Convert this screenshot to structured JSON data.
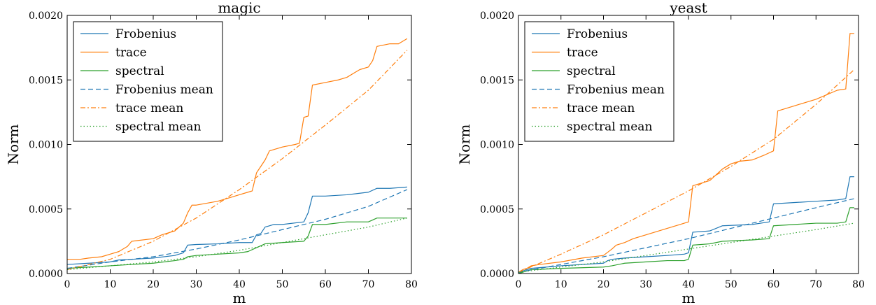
{
  "colors": {
    "frobenius": "#1f77b4",
    "trace": "#ff7f0e",
    "spectral": "#2ca02c"
  },
  "chart_data": [
    {
      "type": "line",
      "title": "magic",
      "xlabel": "m",
      "ylabel": "Norm",
      "xlim": [
        0,
        80
      ],
      "ylim": [
        0,
        0.002
      ],
      "xticks": [
        0,
        10,
        20,
        30,
        40,
        50,
        60,
        70,
        80
      ],
      "xtick_labels": [
        "0",
        "10",
        "20",
        "30",
        "40",
        "50",
        "60",
        "70",
        "80"
      ],
      "yticks": [
        0,
        0.0005,
        0.001,
        0.0015,
        0.002
      ],
      "ytick_labels": [
        "0.0000",
        "0.0005",
        "0.0010",
        "0.0015",
        "0.0020"
      ],
      "grid": false,
      "legend": "top-left",
      "series": [
        {
          "name": "Frobenius",
          "color": "frobenius",
          "style": "solid",
          "x": [
            0,
            5,
            10,
            12,
            15,
            20,
            25,
            27,
            28,
            30,
            35,
            40,
            43,
            44,
            45,
            46,
            48,
            50,
            55,
            56,
            57,
            60,
            65,
            70,
            72,
            75,
            79
          ],
          "y": [
            7e-05,
            8e-05,
            9e-05,
            0.000105,
            0.00011,
            0.00012,
            0.00014,
            0.00016,
            0.00022,
            0.000225,
            0.00023,
            0.00024,
            0.00024,
            0.0003,
            0.00031,
            0.00036,
            0.00038,
            0.00038,
            0.0004,
            0.00047,
            0.0006,
            0.0006,
            0.00061,
            0.00063,
            0.00066,
            0.00066,
            0.00067
          ]
        },
        {
          "name": "trace",
          "color": "trace",
          "style": "solid",
          "x": [
            0,
            3,
            5,
            8,
            10,
            12,
            14,
            15,
            20,
            22,
            25,
            27,
            28,
            29,
            30,
            35,
            38,
            40,
            42,
            43,
            44,
            45,
            46,
            47,
            50,
            53,
            54,
            55,
            56,
            57,
            60,
            63,
            65,
            68,
            70,
            71,
            72,
            75,
            77,
            79
          ],
          "y": [
            0.00011,
            0.00011,
            0.00012,
            0.00013,
            0.00015,
            0.00017,
            0.00021,
            0.00025,
            0.00027,
            0.0003,
            0.00033,
            0.00039,
            0.00047,
            0.00053,
            0.00053,
            0.00056,
            0.00059,
            0.00061,
            0.00063,
            0.00064,
            0.00078,
            0.00083,
            0.00088,
            0.00095,
            0.00098,
            0.001,
            0.00101,
            0.00121,
            0.00122,
            0.00146,
            0.00148,
            0.0015,
            0.00152,
            0.00158,
            0.0016,
            0.00165,
            0.00176,
            0.00178,
            0.00178,
            0.00182
          ]
        },
        {
          "name": "spectral",
          "color": "spectral",
          "style": "solid",
          "x": [
            0,
            5,
            10,
            15,
            20,
            25,
            27,
            28,
            30,
            35,
            40,
            42,
            44,
            46,
            50,
            55,
            56,
            57,
            60,
            65,
            70,
            72,
            75,
            79
          ],
          "y": [
            4e-05,
            5e-05,
            6e-05,
            7e-05,
            8e-05,
            0.0001,
            0.00011,
            0.00013,
            0.00014,
            0.00015,
            0.00016,
            0.00017,
            0.0002,
            0.00023,
            0.00024,
            0.00025,
            0.00029,
            0.00038,
            0.00038,
            0.0004,
            0.0004,
            0.00043,
            0.00043,
            0.00043
          ]
        },
        {
          "name": "Frobenius mean",
          "color": "frobenius",
          "style": "dashed",
          "x": [
            0,
            10,
            20,
            30,
            40,
            50,
            60,
            70,
            79
          ],
          "y": [
            4e-05,
            9e-05,
            0.00013,
            0.00019,
            0.00026,
            0.00034,
            0.00042,
            0.00052,
            0.00065
          ]
        },
        {
          "name": "trace mean",
          "color": "trace",
          "style": "dashdot",
          "x": [
            0,
            10,
            20,
            30,
            40,
            50,
            60,
            70,
            79
          ],
          "y": [
            3e-05,
            0.00011,
            0.00025,
            0.00043,
            0.00065,
            0.00089,
            0.00115,
            0.00142,
            0.00173
          ]
        },
        {
          "name": "spectral mean",
          "color": "spectral",
          "style": "dotted",
          "x": [
            0,
            10,
            20,
            30,
            40,
            50,
            60,
            70,
            79
          ],
          "y": [
            3e-05,
            6e-05,
            9e-05,
            0.00013,
            0.00018,
            0.00024,
            0.0003,
            0.00036,
            0.00043
          ]
        }
      ]
    },
    {
      "type": "line",
      "title": "yeast",
      "xlabel": "m",
      "ylabel": "Norm",
      "xlim": [
        0,
        80
      ],
      "ylim": [
        0,
        0.002
      ],
      "xticks": [
        0,
        10,
        20,
        30,
        40,
        50,
        60,
        70,
        80
      ],
      "xtick_labels": [
        "0",
        "10",
        "20",
        "30",
        "40",
        "50",
        "60",
        "70",
        "80"
      ],
      "yticks": [
        0,
        0.0005,
        0.001,
        0.0015,
        0.002
      ],
      "ytick_labels": [
        "0.0000",
        "0.0005",
        "0.0010",
        "0.0015",
        "0.0020"
      ],
      "grid": false,
      "legend": "top-left",
      "series": [
        {
          "name": "Frobenius",
          "color": "frobenius",
          "style": "solid",
          "x": [
            0,
            1,
            2,
            3,
            10,
            20,
            21,
            22,
            25,
            30,
            35,
            39,
            40,
            41,
            45,
            48,
            55,
            59,
            60,
            65,
            70,
            75,
            77,
            78,
            79
          ],
          "y": [
            0,
            2e-05,
            3e-05,
            4e-05,
            6e-05,
            8e-05,
            0.0001,
            0.00011,
            0.00012,
            0.00013,
            0.00014,
            0.00015,
            0.00016,
            0.00032,
            0.00033,
            0.00037,
            0.00038,
            0.0004,
            0.00054,
            0.00055,
            0.00056,
            0.00057,
            0.00058,
            0.00075,
            0.00075
          ]
        },
        {
          "name": "trace",
          "color": "trace",
          "style": "solid",
          "x": [
            0,
            1,
            2,
            3,
            5,
            10,
            15,
            20,
            22,
            23,
            25,
            27,
            30,
            35,
            38,
            40,
            41,
            43,
            45,
            48,
            50,
            52,
            55,
            58,
            60,
            61,
            65,
            70,
            75,
            77,
            78,
            79
          ],
          "y": [
            1e-05,
            3e-05,
            4e-05,
            6e-05,
            7e-05,
            9e-05,
            0.00012,
            0.00014,
            0.00019,
            0.00022,
            0.00024,
            0.00027,
            0.0003,
            0.00035,
            0.00038,
            0.0004,
            0.00068,
            0.0007,
            0.00072,
            0.00081,
            0.00085,
            0.00087,
            0.00088,
            0.00092,
            0.00095,
            0.00126,
            0.0013,
            0.00135,
            0.00142,
            0.00143,
            0.00186,
            0.00186
          ]
        },
        {
          "name": "spectral",
          "color": "spectral",
          "style": "solid",
          "x": [
            0,
            1,
            2,
            3,
            10,
            20,
            22,
            25,
            30,
            35,
            39,
            40,
            41,
            45,
            48,
            55,
            59,
            60,
            65,
            70,
            75,
            77,
            78,
            79
          ],
          "y": [
            0,
            1e-05,
            2e-05,
            3e-05,
            4e-05,
            5e-05,
            6e-05,
            8e-05,
            9e-05,
            0.0001,
            0.0001,
            0.00011,
            0.00022,
            0.00023,
            0.00025,
            0.00026,
            0.00027,
            0.00037,
            0.00038,
            0.00039,
            0.00039,
            0.0004,
            0.00051,
            0.00051
          ]
        },
        {
          "name": "Frobenius mean",
          "color": "frobenius",
          "style": "dashed",
          "x": [
            0,
            10,
            20,
            30,
            40,
            50,
            60,
            70,
            79
          ],
          "y": [
            1e-05,
            7e-05,
            0.00013,
            0.0002,
            0.00027,
            0.00035,
            0.00043,
            0.00051,
            0.00058
          ]
        },
        {
          "name": "trace mean",
          "color": "trace",
          "style": "dashdot",
          "x": [
            0,
            10,
            20,
            30,
            40,
            50,
            60,
            70,
            79
          ],
          "y": [
            1e-05,
            0.00015,
            0.0003,
            0.00047,
            0.00064,
            0.00083,
            0.00104,
            0.00131,
            0.00158
          ]
        },
        {
          "name": "spectral mean",
          "color": "spectral",
          "style": "dotted",
          "x": [
            0,
            10,
            20,
            30,
            40,
            50,
            60,
            70,
            79
          ],
          "y": [
            1e-05,
            5e-05,
            9e-05,
            0.00014,
            0.00019,
            0.00024,
            0.00029,
            0.00034,
            0.00039
          ]
        }
      ]
    }
  ]
}
